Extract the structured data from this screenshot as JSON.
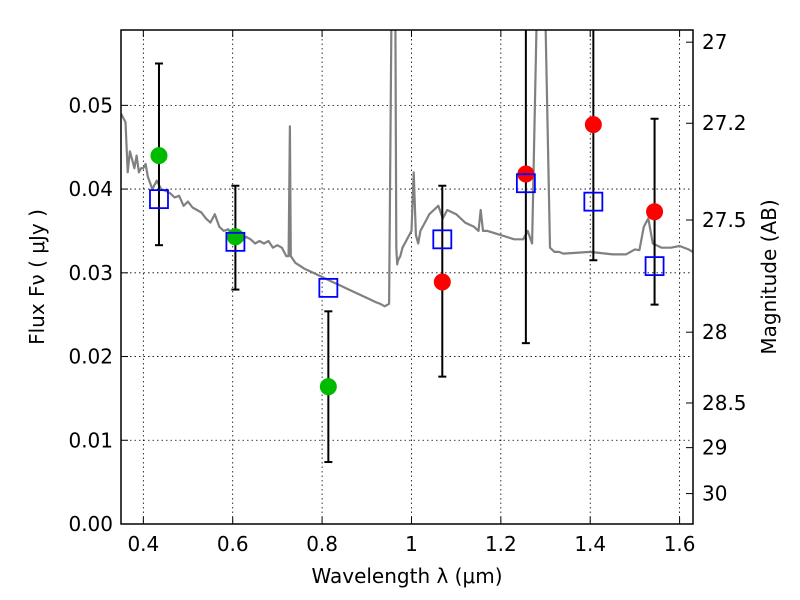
{
  "chart_data": {
    "type": "scatter",
    "xlabel": "Wavelength  λ (μm)",
    "ylabel": "Flux  Fν  ( μJy )",
    "y2label": "Magnitude (AB)",
    "xlim": [
      0.35,
      1.63
    ],
    "ylim": [
      0.0,
      0.059
    ],
    "grid": true,
    "x_ticks": [
      0.4,
      0.6,
      0.8,
      1.0,
      1.2,
      1.4,
      1.6
    ],
    "x_tick_labels": [
      "0.4",
      "0.6",
      "0.8",
      "1",
      "1.2",
      "1.4",
      "1.6"
    ],
    "y_ticks": [
      0.0,
      0.01,
      0.02,
      0.03,
      0.04,
      0.05
    ],
    "y_tick_labels": [
      "0.00",
      "0.01",
      "0.02",
      "0.03",
      "0.04",
      "0.05"
    ],
    "y2_ticks": [
      {
        "label": "27",
        "mag": 27.0
      },
      {
        "label": "27.2",
        "mag": 27.2
      },
      {
        "label": "27.5",
        "mag": 27.5
      },
      {
        "label": "28",
        "mag": 28.0
      },
      {
        "label": "28.5",
        "mag": 28.5
      },
      {
        "label": "29",
        "mag": 29.0
      },
      {
        "label": "30",
        "mag": 30.0
      }
    ],
    "series": [
      {
        "kind": "observed",
        "color": "#00bb00",
        "points": [
          {
            "x": 0.435,
            "y": 0.044,
            "yerr_low": 0.0333,
            "yerr_high": 0.055
          },
          {
            "x": 0.606,
            "y": 0.0343,
            "yerr_low": 0.028,
            "yerr_high": 0.0404
          },
          {
            "x": 0.814,
            "y": 0.0164,
            "yerr_low": 0.0074,
            "yerr_high": 0.0254
          }
        ]
      },
      {
        "kind": "observed",
        "color": "#ff0000",
        "points": [
          {
            "x": 1.069,
            "y": 0.0289,
            "yerr_low": 0.0176,
            "yerr_high": 0.0404
          },
          {
            "x": 1.256,
            "y": 0.0418,
            "yerr_low": 0.0216,
            "yerr_high": 0.062
          },
          {
            "x": 1.407,
            "y": 0.0477,
            "yerr_low": 0.0315,
            "yerr_high": 0.062
          },
          {
            "x": 1.544,
            "y": 0.0373,
            "yerr_low": 0.0262,
            "yerr_high": 0.0484
          }
        ]
      },
      {
        "kind": "model",
        "color": "#0000ff",
        "points": [
          {
            "x": 0.435,
            "y": 0.0388
          },
          {
            "x": 0.606,
            "y": 0.0337
          },
          {
            "x": 0.814,
            "y": 0.0282
          },
          {
            "x": 1.069,
            "y": 0.034
          },
          {
            "x": 1.256,
            "y": 0.0407
          },
          {
            "x": 1.407,
            "y": 0.0385
          },
          {
            "x": 1.544,
            "y": 0.0308
          }
        ]
      }
    ],
    "spectrum": {
      "color": "#808080",
      "x": [
        0.35,
        0.36,
        0.365,
        0.37,
        0.375,
        0.38,
        0.385,
        0.39,
        0.395,
        0.4,
        0.405,
        0.41,
        0.42,
        0.43,
        0.44,
        0.45,
        0.46,
        0.47,
        0.48,
        0.49,
        0.5,
        0.51,
        0.52,
        0.53,
        0.54,
        0.55,
        0.56,
        0.57,
        0.58,
        0.59,
        0.6,
        0.61,
        0.62,
        0.63,
        0.64,
        0.65,
        0.66,
        0.67,
        0.68,
        0.69,
        0.7,
        0.71,
        0.72,
        0.725,
        0.728,
        0.73,
        0.735,
        0.74,
        0.76,
        0.78,
        0.8,
        0.82,
        0.84,
        0.86,
        0.88,
        0.9,
        0.92,
        0.93,
        0.94,
        0.95,
        0.955,
        0.96,
        0.962,
        0.964,
        0.966,
        0.968,
        0.97,
        0.975,
        0.98,
        0.99,
        1.0,
        1.005,
        1.01,
        1.015,
        1.02,
        1.03,
        1.04,
        1.05,
        1.06,
        1.07,
        1.08,
        1.1,
        1.12,
        1.14,
        1.15,
        1.155,
        1.16,
        1.17,
        1.2,
        1.23,
        1.25,
        1.26,
        1.27,
        1.28,
        1.285,
        1.29,
        1.295,
        1.3,
        1.31,
        1.32,
        1.33,
        1.34,
        1.4,
        1.45,
        1.48,
        1.5,
        1.51,
        1.52,
        1.53,
        1.54,
        1.56,
        1.58,
        1.6,
        1.62,
        1.63
      ],
      "y": [
        0.049,
        0.048,
        0.042,
        0.0445,
        0.0435,
        0.0425,
        0.044,
        0.042,
        0.0425,
        0.0425,
        0.043,
        0.0415,
        0.04,
        0.041,
        0.04,
        0.0398,
        0.0395,
        0.039,
        0.0392,
        0.038,
        0.0385,
        0.0378,
        0.0375,
        0.0372,
        0.0365,
        0.036,
        0.037,
        0.0355,
        0.035,
        0.0352,
        0.0345,
        0.0343,
        0.0338,
        0.0343,
        0.034,
        0.0335,
        0.0338,
        0.0335,
        0.0338,
        0.033,
        0.0333,
        0.033,
        0.032,
        0.032,
        0.0475,
        0.032,
        0.0316,
        0.0312,
        0.0305,
        0.03,
        0.0295,
        0.029,
        0.0285,
        0.028,
        0.0275,
        0.027,
        0.0265,
        0.0263,
        0.026,
        0.0263,
        0.06,
        0.06,
        0.06,
        0.06,
        0.033,
        0.031,
        0.0315,
        0.032,
        0.033,
        0.034,
        0.035,
        0.042,
        0.0345,
        0.0335,
        0.035,
        0.036,
        0.037,
        0.0375,
        0.038,
        0.0365,
        0.0375,
        0.037,
        0.036,
        0.0355,
        0.035,
        0.0375,
        0.035,
        0.035,
        0.0345,
        0.034,
        0.034,
        0.035,
        0.0335,
        0.06,
        0.06,
        0.06,
        0.06,
        0.06,
        0.033,
        0.0325,
        0.0325,
        0.0323,
        0.0325,
        0.0322,
        0.0322,
        0.0328,
        0.0327,
        0.0355,
        0.0365,
        0.0335,
        0.033,
        0.033,
        0.0332,
        0.0328,
        0.0325
      ]
    }
  }
}
